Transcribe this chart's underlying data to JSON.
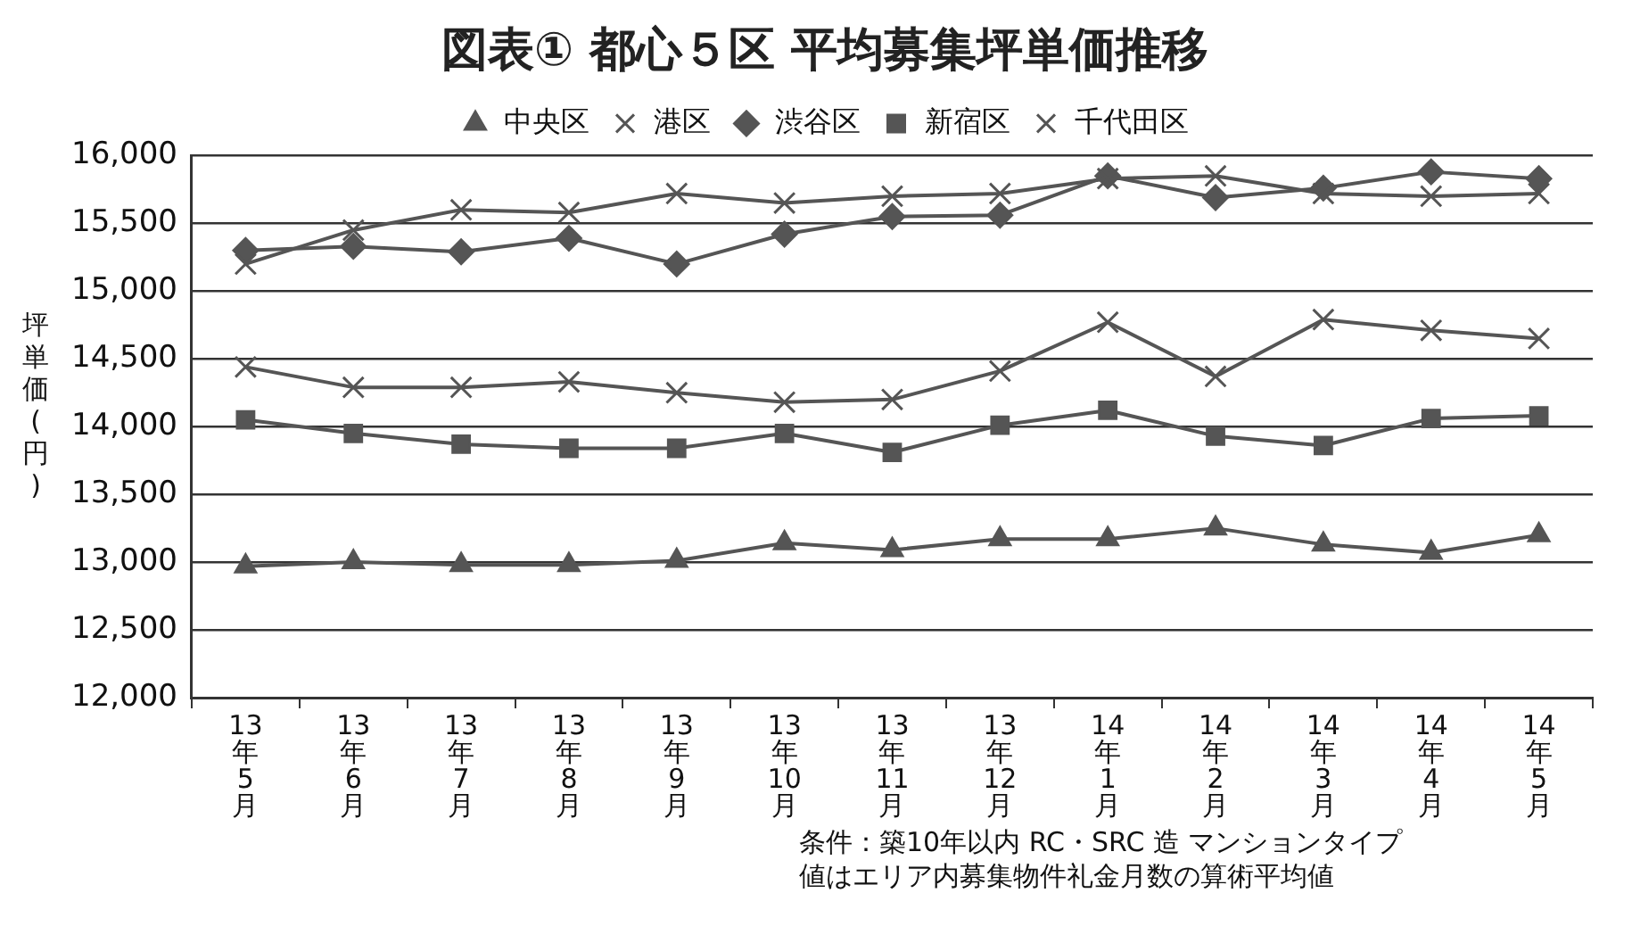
{
  "chart_data": {
    "type": "line",
    "title": "図表① 都心５区 平均募集坪単価推移",
    "ylabel": "坪単価(円)",
    "categories": [
      "13年5月",
      "13年6月",
      "13年7月",
      "13年8月",
      "13年9月",
      "13年10月",
      "13年11月",
      "13年12月",
      "14年1月",
      "14年2月",
      "14年3月",
      "14年4月",
      "14年5月"
    ],
    "series": [
      {
        "name": "中央区",
        "color": "#555555",
        "marker": "triangle",
        "values": [
          12970,
          13000,
          12980,
          12980,
          13010,
          13140,
          13090,
          13170,
          13170,
          13250,
          13130,
          13070,
          13200
        ]
      },
      {
        "name": "港区",
        "color": "#555555",
        "marker": "cross",
        "values": [
          15200,
          15450,
          15600,
          15580,
          15720,
          15650,
          15700,
          15720,
          15830,
          15850,
          15720,
          15700,
          15720
        ]
      },
      {
        "name": "渋谷区",
        "color": "#555555",
        "marker": "diamond",
        "values": [
          15300,
          15330,
          15290,
          15390,
          15200,
          15420,
          15550,
          15560,
          15850,
          15690,
          15760,
          15880,
          15830
        ]
      },
      {
        "name": "新宿区",
        "color": "#555555",
        "marker": "square",
        "values": [
          14050,
          13950,
          13870,
          13840,
          13840,
          13950,
          13810,
          14010,
          14120,
          13930,
          13860,
          14060,
          14080
        ]
      },
      {
        "name": "千代田区",
        "color": "#555555",
        "marker": "cross",
        "values": [
          14440,
          14290,
          14290,
          14330,
          14250,
          14180,
          14200,
          14410,
          14770,
          14370,
          14790,
          14710,
          14650
        ]
      }
    ],
    "ylim": [
      12000,
      16000
    ],
    "yticks": [
      {
        "value": 12000,
        "label": "12,000"
      },
      {
        "value": 12500,
        "label": "12,500"
      },
      {
        "value": 13000,
        "label": "13,000"
      },
      {
        "value": 13500,
        "label": "13,500"
      },
      {
        "value": 14000,
        "label": "14,000"
      },
      {
        "value": 14500,
        "label": "14,500"
      },
      {
        "value": 15000,
        "label": "15,000"
      },
      {
        "value": 15500,
        "label": "15,500"
      },
      {
        "value": 16000,
        "label": "16,000"
      }
    ],
    "grid": "y",
    "legend": "top",
    "line_style": "solid",
    "annotations": [
      "条件：築10年以内 RC・SRC 造 マンションタイプ",
      "値はエリア内募集物件礼金月数の算術平均値"
    ]
  }
}
